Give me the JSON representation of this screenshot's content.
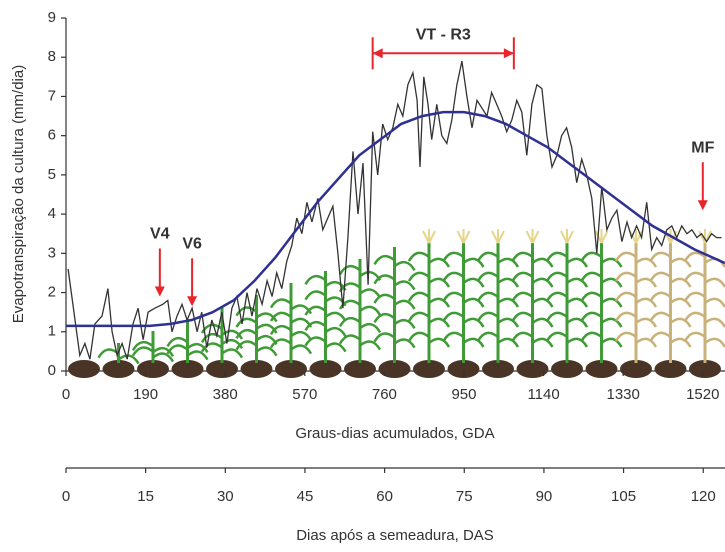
{
  "chart_data": {
    "type": "line",
    "y_label": "Evapotranspiração da cultura (mm/dia)",
    "x_label": "Graus-dias acumulados, GDA",
    "x2_label": "Dias após a semeadura, DAS",
    "xlim": [
      0,
      1573
    ],
    "xticks": [
      0,
      190,
      380,
      570,
      760,
      950,
      1140,
      1330,
      1520
    ],
    "ylim": [
      0,
      9
    ],
    "yticks": [
      0,
      1,
      2,
      3,
      4,
      5,
      6,
      7,
      8,
      9
    ],
    "x2lim": [
      0,
      124.1
    ],
    "x2ticks": [
      0,
      15,
      30,
      45,
      60,
      75,
      90,
      105,
      120
    ],
    "series": [
      {
        "color": "#333333",
        "x": [
          5,
          33,
          45,
          57,
          69,
          86,
          100,
          110,
          122,
          134,
          146,
          160,
          172,
          184,
          196,
          212,
          231,
          243,
          253,
          265,
          277,
          289,
          301,
          313,
          324,
          336,
          348,
          360,
          372,
          384,
          396,
          408,
          420,
          432,
          444,
          456,
          468,
          480,
          492,
          503,
          515,
          527,
          539,
          551,
          563,
          575,
          587,
          601,
          613,
          625,
          637,
          649,
          661,
          673,
          685,
          697,
          709,
          721,
          732,
          744,
          756,
          768,
          780,
          792,
          804,
          816,
          828,
          838,
          845,
          854,
          864,
          873,
          885,
          897,
          909,
          921,
          933,
          945,
          957,
          969,
          981,
          993,
          1005,
          1016,
          1028,
          1040,
          1052,
          1064,
          1076,
          1088,
          1100,
          1112,
          1124,
          1136,
          1148,
          1160,
          1172,
          1183,
          1195,
          1207,
          1219,
          1231,
          1243,
          1255,
          1267,
          1279,
          1291,
          1303,
          1315,
          1327,
          1339,
          1350,
          1362,
          1374,
          1386,
          1398,
          1410,
          1422,
          1434,
          1446,
          1458,
          1470,
          1482,
          1494,
          1506,
          1517,
          1529,
          1541,
          1553,
          1565
        ],
        "values": [
          2.6,
          0.4,
          0.7,
          0.3,
          1.2,
          1.4,
          2.1,
          1.0,
          0.4,
          0.7,
          0.3,
          1.2,
          1.6,
          0.8,
          1.5,
          1.6,
          1.7,
          1.8,
          1.0,
          1.4,
          1.7,
          1.3,
          1.6,
          1.0,
          1.5,
          0.6,
          1.3,
          0.9,
          1.5,
          0.7,
          1.6,
          1.9,
          1.2,
          2.0,
          1.4,
          2.1,
          1.7,
          2.3,
          1.9,
          2.5,
          2.1,
          2.8,
          3.2,
          3.9,
          3.5,
          4.3,
          3.8,
          4.4,
          3.6,
          3.9,
          4.2,
          3.0,
          1.6,
          3.4,
          5.6,
          4.0,
          5.3,
          2.2,
          6.1,
          5.0,
          6.3,
          5.9,
          6.2,
          6.8,
          6.5,
          7.3,
          7.6,
          6.9,
          5.2,
          7.5,
          6.8,
          5.9,
          6.8,
          6.0,
          5.8,
          6.4,
          7.3,
          7.9,
          7.0,
          6.2,
          6.9,
          6.7,
          6.5,
          7.1,
          6.8,
          6.5,
          6.1,
          6.4,
          6.9,
          6.6,
          5.5,
          6.8,
          7.3,
          7.2,
          6.0,
          5.2,
          5.5,
          6.0,
          6.2,
          5.7,
          4.8,
          5.4,
          5.0,
          4.4,
          3.0,
          4.7,
          3.6,
          3.9,
          4.1,
          3.3,
          3.8,
          3.4,
          3.7,
          3.4,
          4.3,
          3.1,
          3.4,
          3.2,
          3.6,
          3.7,
          3.4,
          3.7,
          3.5,
          3.6,
          3.4,
          3.5,
          3.3,
          3.5,
          3.4,
          3.4
        ]
      },
      {
        "color": "#2e3192",
        "x": [
          0,
          100,
          200,
          250,
          300,
          350,
          400,
          450,
          500,
          550,
          600,
          650,
          700,
          750,
          800,
          850,
          900,
          950,
          1000,
          1050,
          1100,
          1150,
          1200,
          1250,
          1300,
          1350,
          1400,
          1450,
          1500,
          1573
        ],
        "values": [
          1.15,
          1.15,
          1.15,
          1.2,
          1.3,
          1.5,
          1.8,
          2.3,
          2.9,
          3.6,
          4.3,
          4.9,
          5.5,
          5.9,
          6.3,
          6.5,
          6.6,
          6.6,
          6.5,
          6.3,
          6.0,
          5.7,
          5.3,
          4.9,
          4.5,
          4.1,
          3.7,
          3.4,
          3.1,
          2.75
        ]
      }
    ],
    "annotation_color": "#e8252a",
    "annotations": [
      {
        "text": "V4",
        "x": 224,
        "y": 1.9
      },
      {
        "text": "V6",
        "x": 301,
        "y": 1.65
      },
      {
        "text": "MF",
        "x": 1520,
        "y": 4.1
      }
    ],
    "bracket": {
      "text": "VT - R3",
      "x": [
        732,
        1069
      ],
      "y": 8.1
    }
  }
}
